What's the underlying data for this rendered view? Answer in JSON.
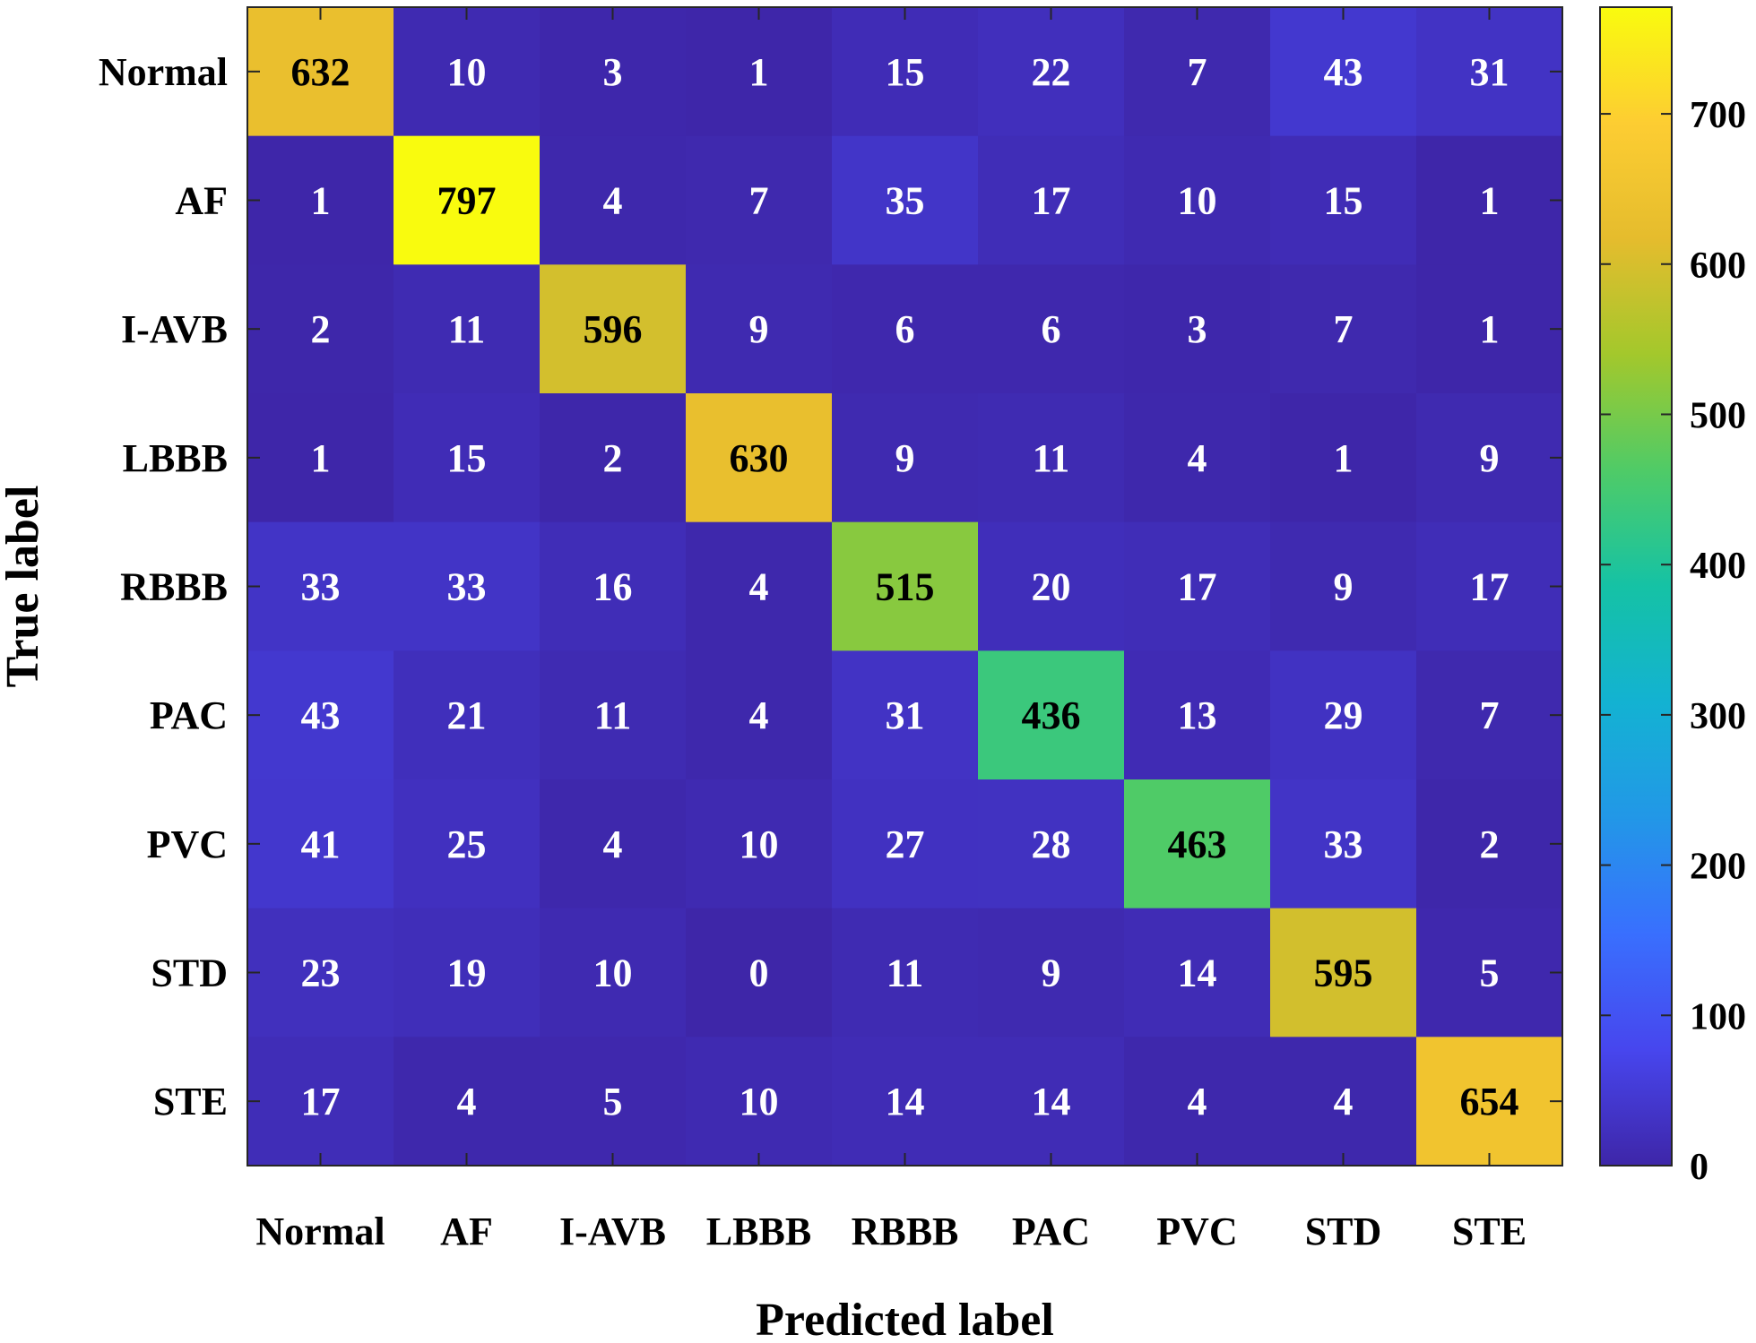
{
  "chart_data": {
    "type": "heatmap",
    "title": "",
    "xlabel": "Predicted label",
    "ylabel": "True label",
    "x_categories": [
      "Normal",
      "AF",
      "I-AVB",
      "LBBB",
      "RBBB",
      "PAC",
      "PVC",
      "STD",
      "STE"
    ],
    "y_categories": [
      "Normal",
      "AF",
      "I-AVB",
      "LBBB",
      "RBBB",
      "PAC",
      "PVC",
      "STD",
      "STE"
    ],
    "values": [
      [
        632,
        10,
        3,
        1,
        15,
        22,
        7,
        43,
        31
      ],
      [
        1,
        797,
        4,
        7,
        35,
        17,
        10,
        15,
        1
      ],
      [
        2,
        11,
        596,
        9,
        6,
        6,
        3,
        7,
        1
      ],
      [
        1,
        15,
        2,
        630,
        9,
        11,
        4,
        1,
        9
      ],
      [
        33,
        33,
        16,
        4,
        515,
        20,
        17,
        9,
        17
      ],
      [
        43,
        21,
        11,
        4,
        31,
        436,
        13,
        29,
        7
      ],
      [
        41,
        25,
        4,
        10,
        27,
        28,
        463,
        33,
        2
      ],
      [
        23,
        19,
        10,
        0,
        11,
        9,
        14,
        595,
        5
      ],
      [
        17,
        4,
        5,
        10,
        14,
        14,
        4,
        4,
        654
      ]
    ],
    "colorbar": {
      "colormap": "parula",
      "range": [
        0,
        771
      ],
      "ticks": [
        0,
        100,
        200,
        300,
        400,
        500,
        600,
        700
      ]
    },
    "text_color_dark": "#000000",
    "text_color_light": "#ffffff"
  }
}
